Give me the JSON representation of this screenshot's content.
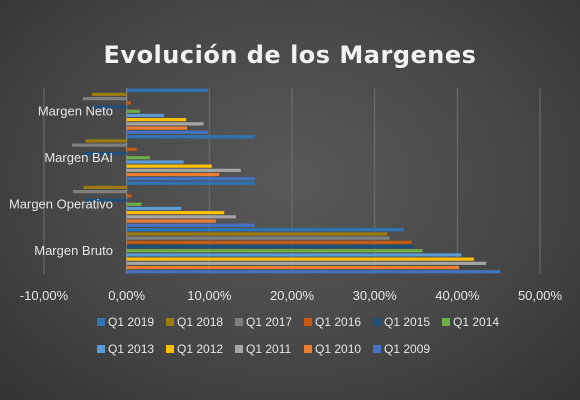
{
  "chart_data": {
    "type": "bar",
    "orientation": "horizontal",
    "title": "Evolución de los Margenes",
    "categories": [
      "Margen Bruto",
      "Margen Operativo",
      "Margen BAI",
      "Margen Neto"
    ],
    "x_ticks": [
      "-10,00%",
      "0,00%",
      "10,00%",
      "20,00%",
      "30,00%",
      "40,00%",
      "50,00%"
    ],
    "xlim": [
      -10,
      50
    ],
    "grid": true,
    "legend_position": "bottom",
    "series": [
      {
        "name": "Q1 2019",
        "color": "#2e75b6",
        "values": [
          33.5,
          15.5,
          15.5,
          9.8
        ]
      },
      {
        "name": "Q1 2018",
        "color": "#9c7a10",
        "values": [
          31.5,
          -5.2,
          -5.0,
          -4.2
        ]
      },
      {
        "name": "Q1 2017",
        "color": "#7f7f7f",
        "values": [
          31.8,
          -6.5,
          -6.6,
          -5.3
        ]
      },
      {
        "name": "Q1 2016",
        "color": "#c55a11",
        "values": [
          34.5,
          0.6,
          1.2,
          0.5
        ]
      },
      {
        "name": "Q1 2015",
        "color": "#1f4e79",
        "values": [
          34.7,
          -4.9,
          -5.3,
          -4.0
        ]
      },
      {
        "name": "Q1 2014",
        "color": "#70ad47",
        "values": [
          35.8,
          1.8,
          2.8,
          1.6
        ]
      },
      {
        "name": "Q1 2013",
        "color": "#5b9bd5",
        "values": [
          40.5,
          6.6,
          6.9,
          4.5
        ]
      },
      {
        "name": "Q1 2012",
        "color": "#ffc000",
        "values": [
          42.0,
          11.8,
          10.3,
          7.2
        ]
      },
      {
        "name": "Q1 2011",
        "color": "#a5a5a5",
        "values": [
          43.5,
          13.2,
          13.8,
          9.3
        ]
      },
      {
        "name": "Q1 2010",
        "color": "#ed7d31",
        "values": [
          40.2,
          10.8,
          11.2,
          7.3
        ]
      },
      {
        "name": "Q1 2009",
        "color": "#4472c4",
        "values": [
          45.2,
          15.5,
          15.5,
          9.8
        ]
      }
    ]
  }
}
